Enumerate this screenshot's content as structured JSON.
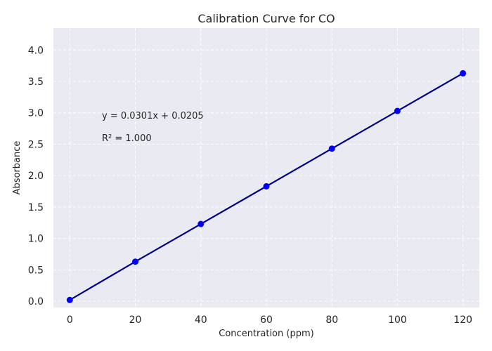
{
  "chart_data": {
    "type": "line",
    "title": "Calibration Curve for CO",
    "xlabel": "Concentration (ppm)",
    "ylabel": "Absorbance",
    "xlim": [
      -5,
      125
    ],
    "ylim": [
      -0.1,
      4.35
    ],
    "x_ticks": [
      0,
      20,
      40,
      60,
      80,
      100,
      120
    ],
    "y_ticks": [
      0.0,
      0.5,
      1.0,
      1.5,
      2.0,
      2.5,
      3.0,
      3.5,
      4.0
    ],
    "x_tick_labels": [
      "0",
      "20",
      "40",
      "60",
      "80",
      "100",
      "120"
    ],
    "y_tick_labels": [
      "0.0",
      "0.5",
      "1.0",
      "1.5",
      "2.0",
      "2.5",
      "3.0",
      "3.5",
      "4.0"
    ],
    "grid": true,
    "series": [
      {
        "x": [
          0,
          20,
          40,
          60,
          80,
          100,
          120
        ],
        "y": [
          0.02,
          0.63,
          1.23,
          1.83,
          2.43,
          3.03,
          3.63
        ],
        "marker": "circle",
        "marker_color": "#0000ff",
        "line_color": "#00008b"
      }
    ],
    "annotations": {
      "equation": "y = 0.0301x + 0.0205",
      "r_squared": "R² = 1.000"
    },
    "colors": {
      "plot_background": "#eaeaf2",
      "grid": "#ffffff"
    }
  }
}
